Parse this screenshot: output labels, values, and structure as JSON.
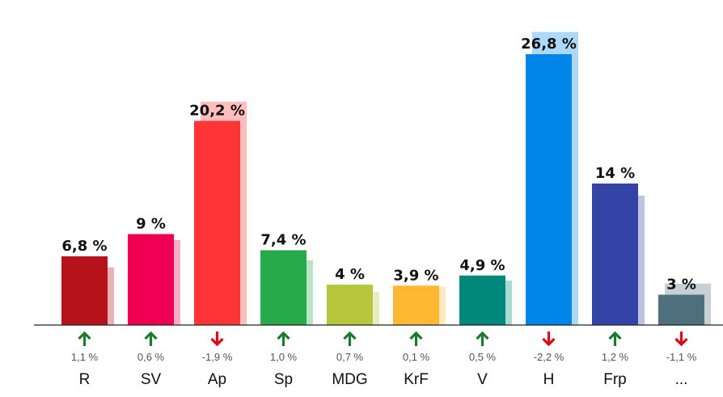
{
  "chart_data": {
    "type": "bar",
    "categories": [
      "R",
      "SV",
      "Ap",
      "Sp",
      "MDG",
      "KrF",
      "V",
      "H",
      "Frp",
      "..."
    ],
    "series": [
      {
        "values": [
          6.8,
          9,
          20.2,
          7.4,
          4,
          3.9,
          4.9,
          26.8,
          14,
          3
        ]
      },
      {
        "values": [
          5.7,
          8.4,
          22.1,
          6.4,
          3.3,
          3.8,
          4.4,
          29.0,
          12.8,
          4.1
        ]
      }
    ],
    "value_labels": [
      "6,8 %",
      "9 %",
      "20,2 %",
      "7,4 %",
      "4 %",
      "3,9 %",
      "4,9 %",
      "26,8 %",
      "14 %",
      "3 %"
    ],
    "changes": [
      1.1,
      0.6,
      -1.9,
      1.0,
      0.7,
      0.1,
      0.5,
      -2.2,
      1.2,
      -1.1
    ],
    "change_labels": [
      "1,1 %",
      "0,6 %",
      "-1,9 %",
      "1,0 %",
      "0,7 %",
      "0,1 %",
      "0,5 %",
      "-2,2 %",
      "1,2 %",
      "-1,1 %"
    ],
    "colors": [
      "#b5121b",
      "#ef0052",
      "#ff3434",
      "#27aa4a",
      "#b6c73c",
      "#ffb833",
      "#00897a",
      "#0086e8",
      "#3443a6",
      "#4e6f7d"
    ],
    "up_color": "#1a7a2e",
    "down_color": "#e0001b",
    "ylim": [
      0,
      28
    ],
    "title": "",
    "xlabel": "",
    "ylabel": ""
  }
}
